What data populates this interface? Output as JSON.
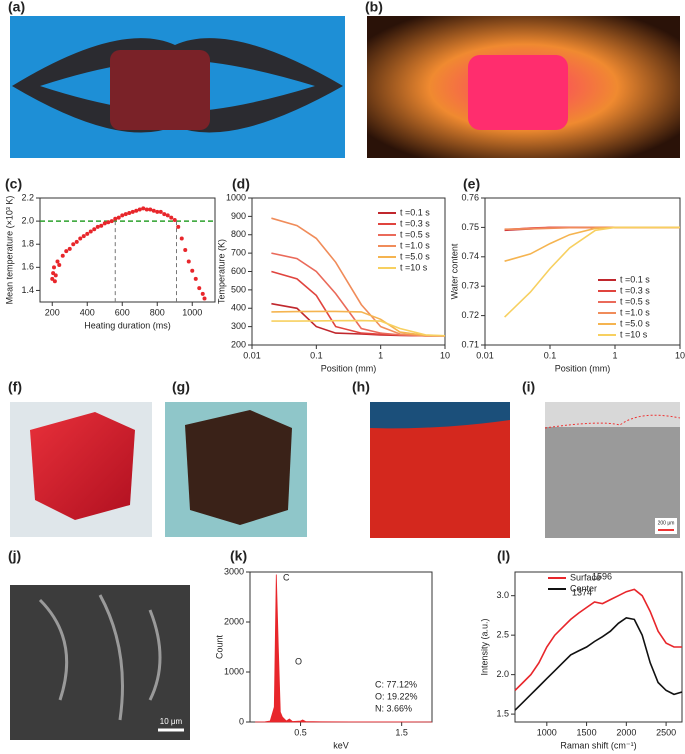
{
  "photos": [
    {
      "label": "(a)"
    },
    {
      "label": "(b)"
    },
    {
      "label": "(f)"
    },
    {
      "label": "(g)"
    },
    {
      "label": "(h)"
    },
    {
      "label": "(i)",
      "scale_bar": "200 μm"
    },
    {
      "label": "(j)",
      "scale_bar": "10 μm"
    }
  ],
  "chart_data": [
    {
      "type": "scatter",
      "panel_label": "(c)",
      "xlabel": "Heating duration (ms)",
      "ylabel": "Mean temperature (×10³ K)",
      "color": "#e8262b",
      "x": [
        200,
        205,
        210,
        215,
        220,
        230,
        240,
        260,
        280,
        300,
        320,
        340,
        360,
        380,
        400,
        420,
        440,
        460,
        480,
        500,
        520,
        540,
        560,
        580,
        600,
        620,
        640,
        660,
        680,
        700,
        720,
        740,
        760,
        780,
        800,
        820,
        840,
        860,
        880,
        900,
        920,
        940,
        960,
        980,
        1000,
        1020,
        1040,
        1060,
        1070
      ],
      "series": [
        {
          "values": [
            1.5,
            1.55,
            1.6,
            1.48,
            1.53,
            1.65,
            1.62,
            1.7,
            1.74,
            1.76,
            1.8,
            1.82,
            1.85,
            1.87,
            1.89,
            1.91,
            1.93,
            1.95,
            1.96,
            1.98,
            1.99,
            2.0,
            2.02,
            2.03,
            2.05,
            2.06,
            2.07,
            2.08,
            2.09,
            2.1,
            2.11,
            2.1,
            2.1,
            2.09,
            2.08,
            2.08,
            2.06,
            2.05,
            2.03,
            2.01,
            1.95,
            1.85,
            1.75,
            1.65,
            1.57,
            1.5,
            1.42,
            1.37,
            1.33
          ],
          "color": "#e8262b"
        }
      ],
      "hlines": [
        {
          "value": 2.0,
          "color": "#2ca02c"
        }
      ],
      "vlines": [
        {
          "value": 560,
          "color": "#777777"
        },
        {
          "value": 910,
          "color": "#777777"
        }
      ],
      "xlim": [
        130,
        1130
      ],
      "xticks": [
        200,
        400,
        600,
        800,
        1000
      ],
      "ylim": [
        1.3,
        2.2
      ],
      "yticks": [
        1.4,
        1.6,
        1.8,
        {
          "value": 2,
          "label": "2.0"
        },
        2.2
      ]
    },
    {
      "type": "line",
      "panel_label": "(d)",
      "xlabel": "Position (mm)",
      "ylabel": "Temperature (K)",
      "xlog": true,
      "x": [
        0.02,
        0.05,
        0.1,
        0.2,
        0.5,
        1,
        2,
        5,
        10
      ],
      "series": [
        {
          "name": "t =0.1 s",
          "color": "#c0272d",
          "values": [
            425,
            400,
            300,
            265,
            260,
            255,
            252,
            250,
            250
          ]
        },
        {
          "name": "t =0.3 s",
          "color": "#e0443e",
          "values": [
            600,
            560,
            470,
            300,
            265,
            258,
            255,
            250,
            250
          ]
        },
        {
          "name": "t =0.5 s",
          "color": "#ea6a5a",
          "values": [
            700,
            670,
            600,
            480,
            290,
            265,
            255,
            250,
            250
          ]
        },
        {
          "name": "t =1.0 s",
          "color": "#f08c5a",
          "values": [
            890,
            850,
            780,
            650,
            420,
            300,
            260,
            250,
            250
          ]
        },
        {
          "name": "t =5.0 s",
          "color": "#f5b450",
          "values": [
            380,
            382,
            383,
            383,
            380,
            340,
            270,
            252,
            250
          ]
        },
        {
          "name": "t =10 s",
          "color": "#f7d060",
          "values": [
            330,
            330,
            331,
            332,
            333,
            330,
            290,
            255,
            250
          ]
        }
      ],
      "xlim": [
        0.01,
        10
      ],
      "xticks": [
        0.01,
        0.1,
        1,
        10
      ],
      "ylim": [
        200,
        1000
      ],
      "yticks": [
        200,
        300,
        400,
        500,
        600,
        700,
        800,
        900,
        1000
      ]
    },
    {
      "type": "line",
      "panel_label": "(e)",
      "xlabel": "Position (mm)",
      "ylabel": "Water content",
      "xlog": true,
      "x": [
        0.02,
        0.05,
        0.1,
        0.2,
        0.5,
        1,
        2,
        5,
        10
      ],
      "series": [
        {
          "name": "t =0.1 s",
          "color": "#c0272d",
          "values": [
            0.749,
            0.7495,
            0.75,
            0.75,
            0.75,
            0.75,
            0.75,
            0.75,
            0.75
          ]
        },
        {
          "name": "t =0.3 s",
          "color": "#e0443e",
          "values": [
            0.7492,
            0.7498,
            0.75,
            0.75,
            0.75,
            0.75,
            0.75,
            0.75,
            0.75
          ]
        },
        {
          "name": "t =0.5 s",
          "color": "#ea6a5a",
          "values": [
            0.7493,
            0.7497,
            0.7499,
            0.75,
            0.75,
            0.75,
            0.75,
            0.75,
            0.75
          ]
        },
        {
          "name": "t =1.0 s",
          "color": "#f08c5a",
          "values": [
            0.7494,
            0.7495,
            0.7497,
            0.7499,
            0.75,
            0.75,
            0.75,
            0.75,
            0.75
          ]
        },
        {
          "name": "t =5.0 s",
          "color": "#f5b450",
          "values": [
            0.7385,
            0.741,
            0.7445,
            0.7475,
            0.7497,
            0.75,
            0.75,
            0.75,
            0.75
          ]
        },
        {
          "name": "t =10 s",
          "color": "#f7d060",
          "values": [
            0.7195,
            0.728,
            0.736,
            0.743,
            0.749,
            0.75,
            0.75,
            0.75,
            0.75
          ]
        }
      ],
      "xlim": [
        0.01,
        10
      ],
      "xticks": [
        0.01,
        0.1,
        1,
        10
      ],
      "ylim": [
        0.71,
        0.76
      ],
      "yticks": [
        0.71,
        0.72,
        0.73,
        0.74,
        0.75,
        0.76
      ]
    },
    {
      "type": "area",
      "panel_label": "(k)",
      "xlabel": "keV",
      "ylabel": "Count",
      "x": [
        0.05,
        0.15,
        0.2,
        0.24,
        0.26,
        0.28,
        0.3,
        0.32,
        0.36,
        0.39,
        0.42,
        0.5,
        0.52,
        0.55,
        0.7,
        1.0,
        1.5,
        1.8
      ],
      "series": [
        {
          "color": "#e8262b",
          "values": [
            0,
            5,
            20,
            300,
            2950,
            1500,
            200,
            100,
            20,
            60,
            10,
            20,
            40,
            10,
            5,
            3,
            2,
            1
          ]
        }
      ],
      "annotations": [
        "C",
        "O",
        "C: 77.12%",
        "O: 19.22%",
        "N: 3.66%"
      ],
      "xlim": [
        0,
        1.8
      ],
      "xticks": [
        0.5,
        1.5
      ],
      "ylim": [
        0,
        3000
      ],
      "yticks": [
        0,
        1000,
        2000,
        3000
      ]
    },
    {
      "type": "line",
      "panel_label": "(l)",
      "xlabel": "Raman shift (cm⁻¹)",
      "ylabel": "Intensity (a.u.)",
      "x": [
        600,
        700,
        800,
        900,
        1000,
        1100,
        1200,
        1300,
        1400,
        1500,
        1600,
        1700,
        1800,
        1900,
        2000,
        2100,
        2200,
        2300,
        2400,
        2500,
        2600,
        2700
      ],
      "series": [
        {
          "name": "Surface",
          "color": "#e8262b",
          "values": [
            1.8,
            1.9,
            2.0,
            2.15,
            2.35,
            2.5,
            2.6,
            2.7,
            2.78,
            2.85,
            2.92,
            2.9,
            2.95,
            3.0,
            3.05,
            3.08,
            3.0,
            2.8,
            2.55,
            2.4,
            2.35,
            2.35
          ]
        },
        {
          "name": "Center",
          "color": "#111111",
          "values": [
            1.55,
            1.65,
            1.75,
            1.85,
            1.95,
            2.05,
            2.15,
            2.25,
            2.3,
            2.35,
            2.42,
            2.48,
            2.55,
            2.65,
            2.72,
            2.7,
            2.5,
            2.15,
            1.9,
            1.8,
            1.75,
            1.78
          ]
        }
      ],
      "annotations": [
        "1374",
        "1596"
      ],
      "xlim": [
        600,
        2700
      ],
      "xticks": [
        1000,
        1500,
        2000,
        2500
      ],
      "ylim": [
        1.4,
        3.3
      ],
      "yticks": [
        1.5,
        {
          "value": 2,
          "label": "2.0"
        },
        2.5,
        {
          "value": 3,
          "label": "3.0"
        }
      ]
    }
  ]
}
